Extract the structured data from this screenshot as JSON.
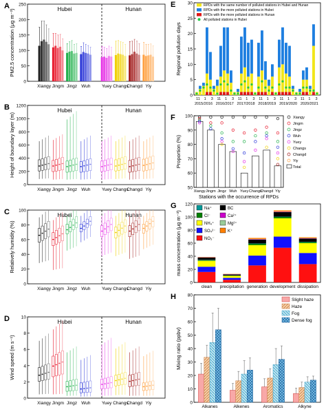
{
  "colors": {
    "Xiangy": "#1a1a1a",
    "Jingm": "#e8192c",
    "Jingz": "#22b14c",
    "Wuh": "#2a36d8",
    "Yuey": "#e633e6",
    "Changs": "#f0d000",
    "Changd": "#a01818",
    "Yiy": "#ffa040",
    "blue": "#1f7fe0",
    "yellow": "#f2e61a",
    "red": "#e01818",
    "green": "#22cc44"
  },
  "region_labels": {
    "hubei": "Hubei",
    "hunan": "Hunan"
  },
  "chart_data": [
    {
      "panel": "A",
      "type": "bar",
      "ylabel": "PM2.5 concentration (μg m⁻³)",
      "ylim": [
        0,
        250
      ],
      "yticks": [
        0,
        50,
        100,
        150,
        200,
        250
      ],
      "categories": [
        "Xiangy",
        "Jingm",
        "Jingz",
        "Wuh",
        "Yuey",
        "Changs",
        "Changd",
        "Yiy"
      ],
      "series_per_station": 5,
      "values": [
        [
          115,
          130,
          135,
          128,
          120
        ],
        [
          110,
          115,
          108,
          112,
          100
        ],
        [
          92,
          96,
          98,
          90,
          92
        ],
        [
          88,
          95,
          92,
          90,
          86
        ],
        [
          78,
          80,
          76,
          82,
          80
        ],
        [
          85,
          90,
          88,
          86,
          82
        ],
        [
          84,
          88,
          96,
          90,
          86
        ],
        [
          86,
          82,
          84,
          86,
          80
        ]
      ],
      "errors": [
        [
          60,
          65,
          60,
          55,
          50
        ],
        [
          45,
          40,
          42,
          40,
          38
        ],
        [
          30,
          32,
          34,
          30,
          30
        ],
        [
          25,
          30,
          28,
          26,
          25
        ],
        [
          35,
          30,
          30,
          32,
          30
        ],
        [
          45,
          42,
          40,
          40,
          38
        ],
        [
          45,
          42,
          40,
          40,
          36
        ],
        [
          40,
          38,
          36,
          35,
          35
        ]
      ]
    },
    {
      "panel": "B",
      "type": "box",
      "ylabel": "Height of boundary layer (m)",
      "ylim": [
        0,
        1200
      ],
      "yticks": [
        0,
        200,
        400,
        600,
        800,
        1000,
        1200
      ],
      "categories": [
        "Xiangy",
        "Jingm",
        "Jingz",
        "Wuh",
        "Yuey",
        "Changs",
        "Changd",
        "Yiy"
      ],
      "median": [
        300,
        300,
        290,
        290,
        290,
        300,
        290,
        310
      ],
      "q1": [
        220,
        210,
        200,
        200,
        210,
        220,
        200,
        220
      ],
      "q3": [
        400,
        390,
        380,
        370,
        380,
        400,
        390,
        410
      ],
      "whisker_low": [
        90,
        80,
        80,
        80,
        80,
        90,
        80,
        90
      ],
      "whisker_high": [
        700,
        720,
        1050,
        700,
        700,
        700,
        700,
        700
      ]
    },
    {
      "panel": "C",
      "type": "box",
      "ylabel": "Relatively humidity (%)",
      "ylim": [
        0,
        100
      ],
      "yticks": [
        0,
        20,
        40,
        60,
        80,
        100
      ],
      "categories": [
        "Xiangy",
        "Jingm",
        "Jingz",
        "Wuh",
        "Yuey",
        "Changs",
        "Changd",
        "Yiy"
      ],
      "median": [
        70,
        64,
        78,
        80,
        76,
        74,
        76,
        80
      ],
      "q1": [
        60,
        55,
        72,
        75,
        68,
        66,
        68,
        73
      ],
      "q3": [
        80,
        74,
        86,
        86,
        84,
        82,
        84,
        86
      ],
      "whisker_low": [
        30,
        20,
        48,
        60,
        40,
        40,
        36,
        50
      ],
      "whisker_high": [
        96,
        92,
        98,
        98,
        98,
        98,
        98,
        98
      ]
    },
    {
      "panel": "D",
      "type": "box",
      "ylabel": "Wind speed (m s⁻¹)",
      "ylim": [
        0,
        10
      ],
      "yticks": [
        0,
        2,
        4,
        6,
        8,
        10
      ],
      "categories": [
        "Xiangy",
        "Jingm",
        "Jingz",
        "Wuh",
        "Yuey",
        "Changs",
        "Changd",
        "Yiy"
      ],
      "median": [
        3.0,
        4.2,
        1.5,
        1.2,
        1.8,
        2.3,
        2.2,
        1.5
      ],
      "q1": [
        2.2,
        2.8,
        0.9,
        0.7,
        1.2,
        1.6,
        1.5,
        1.0
      ],
      "q3": [
        4.0,
        5.5,
        2.2,
        2.0,
        2.5,
        3.0,
        3.0,
        2.0
      ],
      "whisker_low": [
        0.5,
        0.5,
        0.3,
        0.2,
        0.3,
        0.4,
        0.3,
        0.3
      ],
      "whisker_high": [
        7.5,
        9.0,
        6.0,
        5.0,
        7.0,
        6.5,
        6.0,
        5.5
      ]
    },
    {
      "panel": "E",
      "type": "bar",
      "ylabel": "Regional pollution days",
      "ylim": [
        0,
        30
      ],
      "yticks": [
        0,
        5,
        10,
        15,
        20,
        25,
        30
      ],
      "legend": [
        "RPDs with the same number of polluted stations in Hubei and Hunan",
        "RPDs with the more polluted stations in Hubei",
        "RPDs with the more polluted stations in Hunan",
        "All polluted stations in Hubei"
      ],
      "month_labels": [
        "11",
        "1",
        "3",
        "11",
        "1",
        "3",
        "11",
        "1",
        "3",
        "11",
        "1",
        "3",
        "11",
        "1",
        "3",
        "11",
        "1",
        "3"
      ],
      "season_labels": [
        "2015/2016",
        "2016/2017",
        "2017/2018",
        "2018/2019",
        "2019/2020",
        "2020/2021"
      ],
      "totals": [
        1,
        3,
        4,
        22,
        14,
        3,
        5,
        16,
        22,
        22,
        8,
        1,
        2,
        19,
        22,
        17,
        18,
        1,
        17,
        21,
        11,
        5,
        10,
        1,
        18,
        22,
        17,
        16,
        3,
        1,
        2,
        8,
        9,
        3,
        23,
        1
      ],
      "red_part": [
        0,
        0,
        0,
        1,
        1,
        0,
        0,
        1,
        1,
        1,
        0,
        0,
        0,
        1,
        1,
        1,
        1,
        0,
        1,
        1,
        1,
        0,
        1,
        0,
        1,
        1,
        1,
        1,
        0,
        0,
        0,
        1,
        1,
        0,
        1,
        0
      ],
      "yellow_part": [
        1,
        2,
        3,
        6,
        4,
        2,
        3,
        5,
        7,
        6,
        4,
        1,
        1,
        6,
        8,
        5,
        6,
        1,
        5,
        7,
        4,
        3,
        5,
        1,
        8,
        9,
        6,
        5,
        2,
        1,
        1,
        4,
        4,
        2,
        15,
        1
      ],
      "all_hubei": [
        0,
        1,
        2,
        3,
        2,
        1,
        0,
        3,
        4,
        3,
        1,
        0,
        0,
        3,
        4,
        2,
        3,
        0,
        2,
        4,
        2,
        1,
        2,
        0,
        3,
        4,
        2,
        2,
        1,
        0,
        0,
        2,
        2,
        1,
        1,
        0
      ]
    },
    {
      "panel": "F",
      "type": "bar",
      "ylabel": "Proportion (%)",
      "xlabel": "Stations with the occurrence of RPDs",
      "ylim": [
        50,
        100
      ],
      "yticks": [
        50,
        60,
        70,
        80,
        90,
        100
      ],
      "categories": [
        "Xiangy",
        "Jingm",
        "Jingz",
        "Wuh",
        "Yuey",
        "Changs",
        "Changd",
        "Yiy"
      ],
      "total": [
        96,
        90,
        80,
        75,
        60,
        72,
        76,
        65
      ],
      "legend": [
        "Xiangy",
        "Jingm",
        "Jingz",
        "Wuh",
        "Yuey",
        "Changs",
        "Changd",
        "Yiy",
        "Total"
      ],
      "points": [
        [
          99,
          98,
          97,
          96,
          95
        ],
        [
          99,
          95,
          93,
          91
        ],
        [
          99,
          95,
          88,
          84,
          82,
          80
        ],
        [
          99,
          90,
          82,
          77,
          75
        ],
        [
          99,
          88,
          82,
          74,
          68,
          64
        ],
        [
          99,
          90,
          86,
          82,
          76
        ],
        [
          99,
          92,
          88,
          86,
          84,
          78
        ],
        [
          98,
          88,
          82,
          78,
          74,
          70,
          66
        ]
      ]
    },
    {
      "panel": "G",
      "type": "bar",
      "ylabel": "mass concentration (μg m⁻³)",
      "ylim": [
        0,
        120
      ],
      "yticks": [
        0,
        20,
        40,
        60,
        80,
        100,
        120
      ],
      "categories": [
        "clean",
        "precipitation",
        "generation",
        "development",
        "dissipation"
      ],
      "legend": [
        "Na⁺",
        "BC",
        "Cl⁻",
        "Ca²⁺",
        "NH₄⁺",
        "Mg²⁺",
        "SO₄²⁻",
        "K⁺",
        "NO₃⁻"
      ],
      "components": [
        "NO₃⁻",
        "SO₄²⁻",
        "NH₄⁺",
        "Cl⁻",
        "Na⁺",
        "BC",
        "Ca²⁺",
        "Mg²⁺",
        "K⁺"
      ],
      "values": [
        [
          16,
          8,
          9,
          1,
          0.5,
          3.5,
          0.3,
          0.2,
          0.5
        ],
        [
          4,
          3,
          3,
          0.5,
          0.2,
          1.5,
          0.3,
          0.1,
          0.4
        ],
        [
          26,
          15,
          16,
          2,
          0.5,
          6,
          0.6,
          0.3,
          1.6
        ],
        [
          53,
          17,
          28,
          2,
          0.5,
          7,
          0.6,
          0.3,
          1.6
        ],
        [
          28,
          17,
          15,
          1.5,
          0.5,
          5,
          0.5,
          0.3,
          1.2
        ]
      ]
    },
    {
      "panel": "H",
      "type": "bar",
      "ylabel": "Mixing ratio (ppbv)",
      "ylim": [
        0,
        80
      ],
      "yticks": [
        0,
        10,
        20,
        30,
        40,
        50,
        60,
        70,
        80
      ],
      "categories": [
        "Alkanes",
        "Alkenes",
        "Aromatics",
        "Alkyne"
      ],
      "series": [
        {
          "name": "Slight haze",
          "values": [
            21,
            9,
            11.5,
            6.5
          ],
          "errors": [
            8,
            5,
            6,
            4
          ]
        },
        {
          "name": "Haze",
          "values": [
            33.5,
            16,
            18,
            11
          ],
          "errors": [
            9,
            7,
            7,
            4
          ]
        },
        {
          "name": "Fog",
          "values": [
            44.5,
            21,
            28,
            15
          ],
          "errors": [
            22,
            10,
            12,
            4
          ]
        },
        {
          "name": "Dense fog",
          "values": [
            54,
            24,
            32,
            16.5
          ],
          "errors": [
            16,
            9,
            10,
            3
          ]
        }
      ]
    }
  ]
}
